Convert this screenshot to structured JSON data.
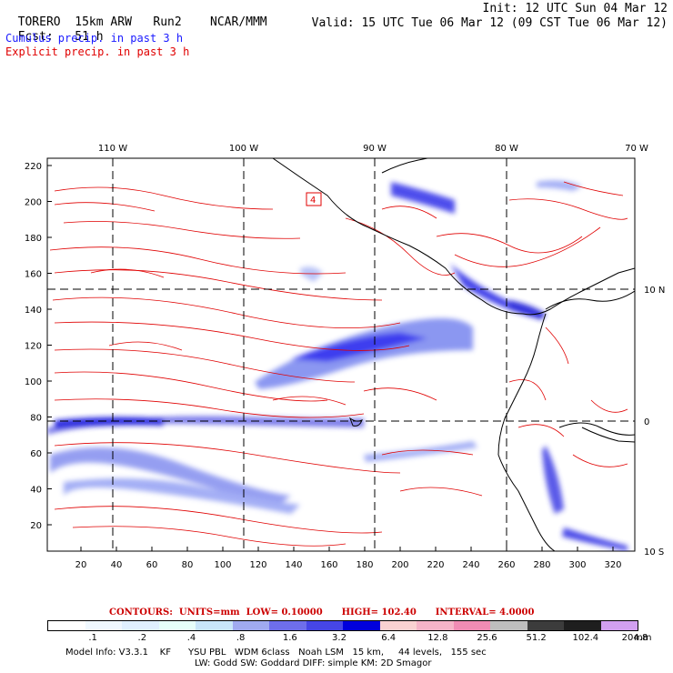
{
  "header": {
    "model_name": "TORERO",
    "resolution": "15km ARW",
    "run": "Run2",
    "org": "NCAR/MMM",
    "init_label": "Init: 12 UTC Sun 04 Mar 12",
    "fcst_label": "Fcst:",
    "fcst_value": "51 h",
    "valid_label": "Valid: 15 UTC Tue 06 Mar 12 (09 CST Tue 06 Mar 12)",
    "cumulus_label": "Cumulus precip. in past 3 h",
    "explicit_label": "Explicit precip. in past 3 h",
    "cumulus_color": "#1a1aff",
    "explicit_color": "#e00000"
  },
  "map": {
    "top_lon_labels": [
      "110 W",
      "100 W",
      "90 W",
      "80 W",
      "70 W"
    ],
    "right_lat_labels": [
      "10 N",
      "0",
      "10 S"
    ],
    "y_ticks": [
      "220",
      "200",
      "180",
      "160",
      "140",
      "120",
      "100",
      "80",
      "60",
      "40",
      "20"
    ],
    "x_ticks": [
      "20",
      "40",
      "60",
      "80",
      "100",
      "120",
      "140",
      "160",
      "180",
      "200",
      "220",
      "240",
      "260",
      "280",
      "300",
      "320"
    ],
    "box_label": "4"
  },
  "contours": {
    "title": "CONTOURS:",
    "units": "UNITS=mm",
    "low": "LOW= 0.10000",
    "high": "HIGH= 102.40",
    "interval": "INTERVAL= 4.0000"
  },
  "colorbar": {
    "colors": [
      "#ffffff",
      "#f0f8ff",
      "#e0f0ff",
      "#e6fffa",
      "#c8e6fa",
      "#a0aaf0",
      "#6e6eeb",
      "#4646e6",
      "#0000dc",
      "#fad2d2",
      "#f5b4c8",
      "#f08cb4",
      "#bebebe",
      "#3c3c3c",
      "#1e1e1e",
      "#d2a0f0"
    ],
    "labels": [
      ".1",
      ".2",
      ".4",
      ".8",
      "1.6",
      "3.2",
      "6.4",
      "12.8",
      "25.6",
      "51.2",
      "102.4",
      "204.8"
    ],
    "unit": "mm"
  },
  "footer": {
    "line1": "Model Info: V3.3.1    KF      YSU PBL   WDM 6class   Noah LSM   15 km,     44 levels,   155 sec",
    "line2": "LW: Godd SW: Goddard DIFF: simple KM: 2D Smagor"
  }
}
